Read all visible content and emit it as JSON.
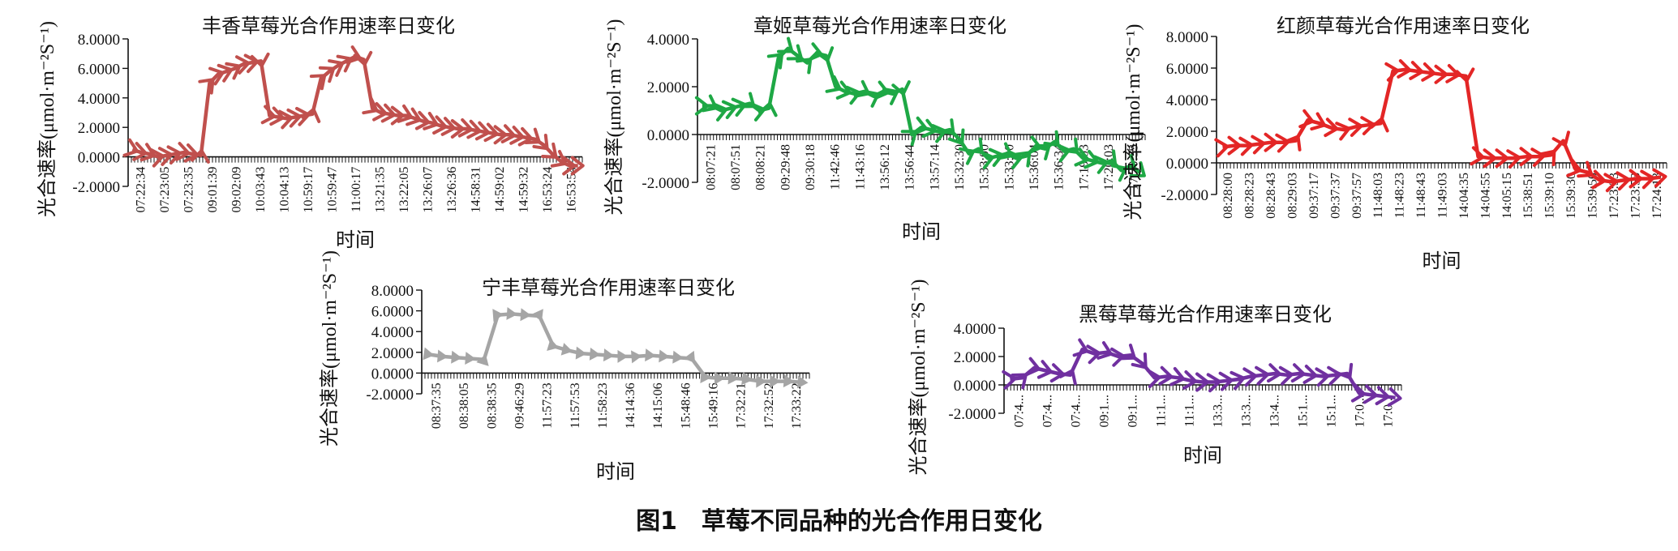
{
  "figure_caption": "图1　草莓不同品种的光合作用日变化",
  "chart_data": [
    {
      "type": "line",
      "title": "丰香草莓光合作用速率日变化",
      "xlabel": "时间",
      "ylabel": "光合速率(μmol·m⁻²S⁻¹)",
      "ylim": [
        -2,
        8
      ],
      "yticks": [
        "-2.0000",
        "0.0000",
        "2.0000",
        "4.0000",
        "6.0000",
        "8.0000"
      ],
      "color": "#c0504d",
      "marker": "chevron",
      "x_labels": [
        "07:22:34",
        "07:23:05",
        "07:23:35",
        "09:01:39",
        "09:02:09",
        "10:03:43",
        "10:04:13",
        "10:59:17",
        "10:59:47",
        "11:00:17",
        "13:21:35",
        "13:22:05",
        "13:26:07",
        "13:26:36",
        "14:58:31",
        "14:59:02",
        "14:59:32",
        "16:53:24",
        "16:53:54"
      ],
      "series": [
        {
          "values": [
            0.5,
            0.3,
            0.2,
            0.0,
            0.1,
            0.2,
            0.3,
            0.2,
            0.1,
            5.0,
            5.6,
            5.8,
            6.0,
            6.3,
            6.4,
            6.5,
            2.8,
            2.7,
            2.6,
            2.7,
            2.8,
            2.9,
            5.3,
            5.8,
            6.2,
            6.5,
            6.8,
            6.6,
            3.3,
            3.0,
            2.9,
            2.8,
            2.8,
            2.6,
            2.4,
            2.3,
            2.1,
            2.0,
            1.9,
            1.9,
            1.8,
            1.7,
            1.6,
            1.5,
            1.5,
            1.4,
            1.3,
            1.2,
            0.8,
            0.2,
            -0.3,
            -0.6,
            -0.6
          ]
        }
      ]
    },
    {
      "type": "line",
      "title": "章姬草莓光合作用速率日变化",
      "xlabel": "时间",
      "ylabel": "光合速率(μmol·m⁻²S⁻¹)",
      "ylim": [
        -2,
        4
      ],
      "yticks": [
        "-2.0000",
        "0.0000",
        "2.0000",
        "4.0000"
      ],
      "color": "#1ea845",
      "marker": "chevron",
      "x_labels": [
        "08:07:21",
        "08:07:51",
        "08:08:21",
        "09:29:48",
        "09:30:18",
        "11:42:46",
        "11:43:16",
        "13:56:12",
        "13:56:44",
        "13:57:14",
        "15:32:30",
        "15:33:00",
        "15:33:30",
        "15:36:04",
        "15:36:34",
        "17:19:03",
        "17:20:03",
        "17:20:33"
      ],
      "series": [
        {
          "values": [
            1.2,
            1.2,
            1.0,
            1.1,
            1.2,
            1.3,
            1.0,
            1.1,
            3.2,
            3.6,
            3.3,
            3.0,
            3.4,
            3.3,
            2.0,
            1.8,
            1.7,
            1.8,
            1.6,
            1.8,
            1.7,
            1.9,
            0.0,
            0.3,
            0.2,
            0.1,
            0.2,
            -0.2,
            -0.8,
            -0.6,
            -1.0,
            -0.9,
            -0.8,
            -1.0,
            -0.9,
            -0.5,
            -0.6,
            -0.3,
            -0.7,
            -0.6,
            -1.0,
            -1.1,
            -1.2,
            -1.1,
            -1.5,
            -1.3,
            -1.6
          ]
        }
      ]
    },
    {
      "type": "line",
      "title": "红颜草莓光合作用速率日变化",
      "xlabel": "时间",
      "ylabel": "光合速率(μmol·m⁻²S⁻¹)",
      "ylim": [
        -2,
        8
      ],
      "yticks": [
        "-2.0000",
        "0.0000",
        "2.0000",
        "4.0000",
        "6.0000",
        "8.0000"
      ],
      "color": "#e32626",
      "marker": "chevron",
      "x_labels": [
        "08:28:00",
        "08:28:23",
        "08:28:43",
        "08:29:03",
        "09:37:17",
        "09:37:37",
        "09:37:57",
        "11:48:03",
        "11:48:23",
        "11:48:43",
        "11:49:03",
        "14:04:35",
        "14:04:55",
        "14:05:15",
        "15:38:51",
        "15:39:10",
        "15:39:30",
        "15:39:50",
        "17:23:33",
        "17:23:53",
        "17:24:13"
      ],
      "series": [
        {
          "values": [
            1.0,
            1.1,
            1.1,
            1.2,
            1.3,
            1.3,
            1.4,
            2.7,
            2.5,
            2.2,
            2.1,
            2.3,
            2.4,
            2.5,
            5.8,
            5.9,
            5.8,
            5.7,
            5.6,
            5.6,
            5.5,
            0.4,
            0.3,
            0.3,
            0.3,
            0.4,
            0.4,
            0.5,
            1.4,
            -0.4,
            -0.6,
            -1.1,
            -1.2,
            -1.1,
            -1.0,
            -1.0,
            -0.9
          ]
        }
      ]
    },
    {
      "type": "line",
      "title": "宁丰草莓光合作用速率日变化",
      "xlabel": "时间",
      "ylabel": "光合速率(μmol·m⁻²S⁻¹)",
      "ylim": [
        -2,
        8
      ],
      "yticks": [
        "-2.0000",
        "0.0000",
        "2.0000",
        "4.0000",
        "6.0000",
        "8.0000"
      ],
      "color": "#a5a5a5",
      "marker": "triangle",
      "x_labels": [
        "08:37:35",
        "08:38:05",
        "08:38:35",
        "09:46:29",
        "11:57:23",
        "11:57:53",
        "11:58:23",
        "14:14:36",
        "14:15:06",
        "15:48:46",
        "15:49:16",
        "17:32:21",
        "17:32:52",
        "17:33:22"
      ],
      "series": [
        {
          "values": [
            1.8,
            1.6,
            1.5,
            1.4,
            1.3,
            5.6,
            5.7,
            5.6,
            5.5,
            2.6,
            2.2,
            1.9,
            1.8,
            1.7,
            1.6,
            1.6,
            1.7,
            1.6,
            1.5,
            1.4,
            -0.4,
            -0.5,
            -0.5,
            -0.6,
            -0.8,
            -0.8,
            -0.8,
            -0.9
          ]
        }
      ]
    },
    {
      "type": "line",
      "title": "黑莓草莓光合作用速率日变化",
      "xlabel": "时间",
      "ylabel": "光合速率(μmol·m⁻²S⁻¹)",
      "ylim": [
        -2,
        4
      ],
      "yticks": [
        "-2.0000",
        "0.0000",
        "2.0000",
        "4.0000"
      ],
      "color": "#7030a0",
      "marker": "chevron",
      "x_labels": [
        "07:4...",
        "07:4...",
        "07:4...",
        "09:1...",
        "09:1...",
        "11:1...",
        "11:1...",
        "13:3...",
        "13:3...",
        "13:4...",
        "15:1...",
        "15:1...",
        "17:0...",
        "17:0..."
      ],
      "series": [
        {
          "values": [
            0.4,
            0.5,
            1.2,
            1.0,
            0.8,
            0.7,
            2.5,
            2.2,
            2.3,
            2.0,
            2.1,
            1.5,
            0.5,
            0.6,
            0.5,
            0.3,
            0.2,
            0.2,
            0.3,
            0.4,
            0.6,
            0.7,
            0.8,
            0.7,
            0.8,
            0.7,
            0.6,
            0.7,
            0.8,
            -0.6,
            -0.7,
            -0.8,
            -0.9
          ]
        }
      ]
    }
  ]
}
